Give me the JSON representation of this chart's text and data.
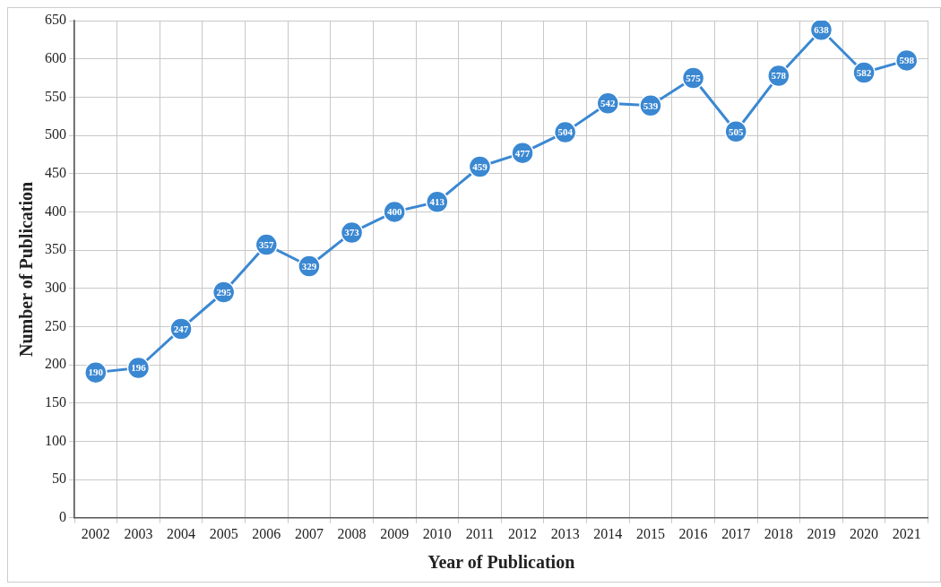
{
  "chart_data": {
    "type": "line",
    "xlabel": "Year of Publication",
    "ylabel": "Number of Publication",
    "categories": [
      "2002",
      "2003",
      "2004",
      "2005",
      "2006",
      "2007",
      "2008",
      "2009",
      "2010",
      "2011",
      "2012",
      "2013",
      "2014",
      "2015",
      "2016",
      "2017",
      "2018",
      "2019",
      "2020",
      "2021"
    ],
    "series": [
      {
        "color": "#3b88d2",
        "values": [
          190,
          196,
          247,
          295,
          357,
          329,
          373,
          400,
          413,
          459,
          477,
          504,
          542,
          539,
          575,
          505,
          578,
          638,
          582,
          598
        ]
      }
    ],
    "ylim": [
      0,
      650
    ],
    "yticks": [
      0,
      50,
      100,
      150,
      200,
      250,
      300,
      350,
      400,
      450,
      500,
      550,
      600,
      650
    ],
    "grid": true,
    "legend": false,
    "marker": "circle",
    "line_style": "solid",
    "data_labels": true
  }
}
